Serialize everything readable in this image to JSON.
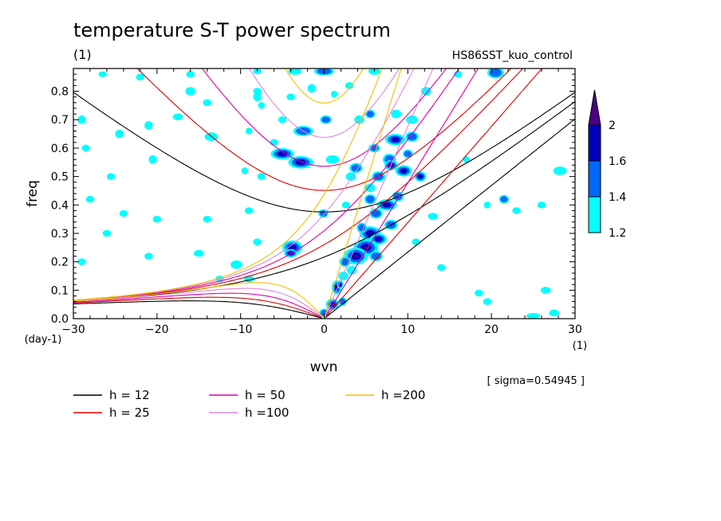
{
  "chart_data": {
    "type": "heatmap",
    "title": "temperature S-T power spectrum",
    "subtitle_left": "(1)",
    "subtitle_right": "HS86SST_kuo_control",
    "xlabel": "wvn",
    "ylabel": "freq",
    "x_unit": "(1)",
    "y_unit": "(day-1)",
    "sigma_note": "[ sigma=0.54945 ]",
    "xlim": [
      -30,
      30
    ],
    "ylim": [
      0,
      0.88
    ],
    "x_ticks": [
      -30,
      -20,
      -10,
      0,
      10,
      20,
      30
    ],
    "y_ticks": [
      0.0,
      0.1,
      0.2,
      0.3,
      0.4,
      0.5,
      0.6,
      0.7,
      0.8
    ],
    "colorbar": {
      "levels": [
        1.2,
        1.4,
        1.6,
        2
      ],
      "colors": [
        "#00ffff",
        "#0066ff",
        "#0000bb",
        "#4b0082"
      ]
    },
    "curves": [
      {
        "label": "h = 12",
        "h": 12,
        "color": "#000000"
      },
      {
        "label": "h = 25",
        "h": 25,
        "color": "#dd0000"
      },
      {
        "label": "h = 50",
        "h": 50,
        "color": "#dd00aa"
      },
      {
        "label": "h =100",
        "h": 100,
        "color": "#dd88dd"
      },
      {
        "label": "h =200",
        "h": 200,
        "color": "#f0c000"
      }
    ],
    "blobs": [
      {
        "x": 0,
        "y": 0.87,
        "w": 1.2,
        "h": 0.015,
        "level": 2
      },
      {
        "x": -3.5,
        "y": 0.87,
        "w": 0.8,
        "h": 0.012,
        "level": 1
      },
      {
        "x": 6,
        "y": 0.87,
        "w": 0.7,
        "h": 0.012,
        "level": 1
      },
      {
        "x": 20.5,
        "y": 0.865,
        "w": 1.0,
        "h": 0.02,
        "level": 2
      },
      {
        "x": -8,
        "y": 0.87,
        "w": 0.5,
        "h": 0.01,
        "level": 1
      },
      {
        "x": -22,
        "y": 0.85,
        "w": 0.5,
        "h": 0.012,
        "level": 1
      },
      {
        "x": -26.5,
        "y": 0.86,
        "w": 0.5,
        "h": 0.01,
        "level": 1
      },
      {
        "x": -16,
        "y": 0.86,
        "w": 0.5,
        "h": 0.012,
        "level": 1
      },
      {
        "x": 16,
        "y": 0.86,
        "w": 0.5,
        "h": 0.012,
        "level": 1
      },
      {
        "x": -8,
        "y": 0.78,
        "w": 0.5,
        "h": 0.015,
        "level": 1
      },
      {
        "x": -7.5,
        "y": 0.75,
        "w": 0.4,
        "h": 0.012,
        "level": 1
      },
      {
        "x": -16,
        "y": 0.8,
        "w": 0.6,
        "h": 0.015,
        "level": 1
      },
      {
        "x": -14,
        "y": 0.76,
        "w": 0.5,
        "h": 0.012,
        "level": 1
      },
      {
        "x": -8,
        "y": 0.8,
        "w": 0.5,
        "h": 0.012,
        "level": 1
      },
      {
        "x": -1.5,
        "y": 0.81,
        "w": 0.5,
        "h": 0.015,
        "level": 1
      },
      {
        "x": 1.2,
        "y": 0.79,
        "w": 0.4,
        "h": 0.012,
        "level": 1
      },
      {
        "x": 3,
        "y": 0.82,
        "w": 0.5,
        "h": 0.012,
        "level": 1
      },
      {
        "x": -4,
        "y": 0.78,
        "w": 0.5,
        "h": 0.012,
        "level": 1
      },
      {
        "x": -17.5,
        "y": 0.71,
        "w": 0.6,
        "h": 0.012,
        "level": 1
      },
      {
        "x": -29,
        "y": 0.7,
        "w": 0.5,
        "h": 0.015,
        "level": 1
      },
      {
        "x": -21,
        "y": 0.68,
        "w": 0.5,
        "h": 0.015,
        "level": 1
      },
      {
        "x": -5,
        "y": 0.7,
        "w": 0.5,
        "h": 0.012,
        "level": 1
      },
      {
        "x": -2.5,
        "y": 0.66,
        "w": 1.2,
        "h": 0.018,
        "level": 2
      },
      {
        "x": 0.2,
        "y": 0.7,
        "w": 0.7,
        "h": 0.015,
        "level": 2
      },
      {
        "x": 5.5,
        "y": 0.72,
        "w": 0.6,
        "h": 0.015,
        "level": 2
      },
      {
        "x": 8.6,
        "y": 0.72,
        "w": 0.6,
        "h": 0.015,
        "level": 1
      },
      {
        "x": 10.5,
        "y": 0.7,
        "w": 0.7,
        "h": 0.015,
        "level": 1
      },
      {
        "x": 4.2,
        "y": 0.7,
        "w": 0.6,
        "h": 0.015,
        "level": 1
      },
      {
        "x": 12.2,
        "y": 0.8,
        "w": 0.6,
        "h": 0.015,
        "level": 1
      },
      {
        "x": -24.5,
        "y": 0.65,
        "w": 0.5,
        "h": 0.015,
        "level": 1
      },
      {
        "x": -13.5,
        "y": 0.64,
        "w": 0.8,
        "h": 0.015,
        "level": 1
      },
      {
        "x": -9,
        "y": 0.66,
        "w": 0.4,
        "h": 0.012,
        "level": 1
      },
      {
        "x": -6,
        "y": 0.62,
        "w": 0.5,
        "h": 0.012,
        "level": 1
      },
      {
        "x": -5,
        "y": 0.58,
        "w": 1.4,
        "h": 0.02,
        "level": 3
      },
      {
        "x": -2.8,
        "y": 0.55,
        "w": 1.5,
        "h": 0.022,
        "level": 3
      },
      {
        "x": 1,
        "y": 0.56,
        "w": 0.8,
        "h": 0.015,
        "level": 1
      },
      {
        "x": -20.5,
        "y": 0.56,
        "w": 0.5,
        "h": 0.015,
        "level": 1
      },
      {
        "x": -28.5,
        "y": 0.6,
        "w": 0.5,
        "h": 0.012,
        "level": 1
      },
      {
        "x": 6,
        "y": 0.6,
        "w": 0.7,
        "h": 0.015,
        "level": 2
      },
      {
        "x": 8.5,
        "y": 0.63,
        "w": 1.2,
        "h": 0.02,
        "level": 3
      },
      {
        "x": 10.5,
        "y": 0.64,
        "w": 0.8,
        "h": 0.018,
        "level": 2
      },
      {
        "x": 7.8,
        "y": 0.56,
        "w": 0.8,
        "h": 0.02,
        "level": 2
      },
      {
        "x": 9.5,
        "y": 0.52,
        "w": 1.0,
        "h": 0.02,
        "level": 3
      },
      {
        "x": 8.0,
        "y": 0.54,
        "w": 0.8,
        "h": 0.018,
        "level": 3
      },
      {
        "x": 6.5,
        "y": 0.5,
        "w": 0.8,
        "h": 0.018,
        "level": 2
      },
      {
        "x": 3.8,
        "y": 0.53,
        "w": 0.8,
        "h": 0.018,
        "level": 2
      },
      {
        "x": 3.2,
        "y": 0.5,
        "w": 0.6,
        "h": 0.015,
        "level": 1
      },
      {
        "x": 11.5,
        "y": 0.5,
        "w": 0.7,
        "h": 0.018,
        "level": 3
      },
      {
        "x": -25.5,
        "y": 0.5,
        "w": 0.5,
        "h": 0.012,
        "level": 1
      },
      {
        "x": -9.5,
        "y": 0.52,
        "w": 0.4,
        "h": 0.012,
        "level": 1
      },
      {
        "x": -7.5,
        "y": 0.5,
        "w": 0.5,
        "h": 0.012,
        "level": 1
      },
      {
        "x": 5.5,
        "y": 0.46,
        "w": 0.6,
        "h": 0.015,
        "level": 1
      },
      {
        "x": 5.5,
        "y": 0.42,
        "w": 0.7,
        "h": 0.018,
        "level": 2
      },
      {
        "x": 7.5,
        "y": 0.4,
        "w": 1.2,
        "h": 0.02,
        "level": 3
      },
      {
        "x": 8.8,
        "y": 0.43,
        "w": 0.7,
        "h": 0.018,
        "level": 2
      },
      {
        "x": 6.2,
        "y": 0.37,
        "w": 0.8,
        "h": 0.018,
        "level": 2
      },
      {
        "x": -0.1,
        "y": 0.37,
        "w": 0.6,
        "h": 0.015,
        "level": 2
      },
      {
        "x": 2.6,
        "y": 0.4,
        "w": 0.5,
        "h": 0.012,
        "level": 1
      },
      {
        "x": -14,
        "y": 0.35,
        "w": 0.5,
        "h": 0.012,
        "level": 1
      },
      {
        "x": -20,
        "y": 0.35,
        "w": 0.5,
        "h": 0.012,
        "level": 1
      },
      {
        "x": -24,
        "y": 0.37,
        "w": 0.5,
        "h": 0.012,
        "level": 1
      },
      {
        "x": -28,
        "y": 0.42,
        "w": 0.5,
        "h": 0.012,
        "level": 1
      },
      {
        "x": -9,
        "y": 0.38,
        "w": 0.5,
        "h": 0.012,
        "level": 1
      },
      {
        "x": 13,
        "y": 0.36,
        "w": 0.6,
        "h": 0.012,
        "level": 1
      },
      {
        "x": 21.5,
        "y": 0.42,
        "w": 0.6,
        "h": 0.015,
        "level": 2
      },
      {
        "x": 19.5,
        "y": 0.4,
        "w": 0.4,
        "h": 0.012,
        "level": 1
      },
      {
        "x": 23,
        "y": 0.38,
        "w": 0.5,
        "h": 0.012,
        "level": 1
      },
      {
        "x": 26,
        "y": 0.4,
        "w": 0.5,
        "h": 0.012,
        "level": 1
      },
      {
        "x": 28.2,
        "y": 0.52,
        "w": 0.8,
        "h": 0.015,
        "level": 1
      },
      {
        "x": 8,
        "y": 0.33,
        "w": 0.8,
        "h": 0.018,
        "level": 2
      },
      {
        "x": 5.5,
        "y": 0.3,
        "w": 1.3,
        "h": 0.025,
        "level": 3
      },
      {
        "x": 4.5,
        "y": 0.32,
        "w": 0.6,
        "h": 0.018,
        "level": 2
      },
      {
        "x": 6.5,
        "y": 0.28,
        "w": 1.0,
        "h": 0.02,
        "level": 3
      },
      {
        "x": 5,
        "y": 0.25,
        "w": 1.5,
        "h": 0.03,
        "level": 4
      },
      {
        "x": 3.8,
        "y": 0.22,
        "w": 1.4,
        "h": 0.03,
        "level": 4
      },
      {
        "x": 6.2,
        "y": 0.22,
        "w": 0.8,
        "h": 0.018,
        "level": 2
      },
      {
        "x": 2.5,
        "y": 0.2,
        "w": 0.7,
        "h": 0.018,
        "level": 2
      },
      {
        "x": 2.3,
        "y": 0.15,
        "w": 0.6,
        "h": 0.015,
        "level": 1
      },
      {
        "x": 3.3,
        "y": 0.17,
        "w": 0.6,
        "h": 0.015,
        "level": 1
      },
      {
        "x": -3.8,
        "y": 0.25,
        "w": 1.2,
        "h": 0.025,
        "level": 3
      },
      {
        "x": -4,
        "y": 0.23,
        "w": 0.8,
        "h": 0.015,
        "level": 4
      },
      {
        "x": -10.5,
        "y": 0.19,
        "w": 0.7,
        "h": 0.015,
        "level": 1
      },
      {
        "x": -15,
        "y": 0.23,
        "w": 0.6,
        "h": 0.012,
        "level": 1
      },
      {
        "x": -21,
        "y": 0.22,
        "w": 0.5,
        "h": 0.012,
        "level": 1
      },
      {
        "x": -8,
        "y": 0.27,
        "w": 0.5,
        "h": 0.012,
        "level": 1
      },
      {
        "x": -26,
        "y": 0.3,
        "w": 0.5,
        "h": 0.012,
        "level": 1
      },
      {
        "x": -29,
        "y": 0.2,
        "w": 0.5,
        "h": 0.012,
        "level": 1
      },
      {
        "x": -9,
        "y": 0.14,
        "w": 0.6,
        "h": 0.012,
        "level": 1
      },
      {
        "x": -12.5,
        "y": 0.14,
        "w": 0.5,
        "h": 0.012,
        "level": 1
      },
      {
        "x": 1.5,
        "y": 0.11,
        "w": 0.6,
        "h": 0.025,
        "level": 3
      },
      {
        "x": 1.9,
        "y": 0.12,
        "w": 0.4,
        "h": 0.015,
        "level": 4
      },
      {
        "x": 1,
        "y": 0.05,
        "w": 0.8,
        "h": 0.02,
        "level": 4
      },
      {
        "x": 0,
        "y": 0.02,
        "w": 0.6,
        "h": 0.015,
        "level": 2
      },
      {
        "x": 2.2,
        "y": 0.06,
        "w": 0.5,
        "h": 0.015,
        "level": 2
      },
      {
        "x": 18.5,
        "y": 0.09,
        "w": 0.5,
        "h": 0.012,
        "level": 1
      },
      {
        "x": 26.5,
        "y": 0.1,
        "w": 0.6,
        "h": 0.012,
        "level": 1
      },
      {
        "x": 27.5,
        "y": 0.02,
        "w": 0.6,
        "h": 0.012,
        "level": 1
      },
      {
        "x": 25,
        "y": 0.01,
        "w": 0.8,
        "h": 0.01,
        "level": 1
      },
      {
        "x": 19.5,
        "y": 0.06,
        "w": 0.5,
        "h": 0.012,
        "level": 1
      },
      {
        "x": 14,
        "y": 0.18,
        "w": 0.5,
        "h": 0.012,
        "level": 1
      },
      {
        "x": 17,
        "y": 0.56,
        "w": 0.4,
        "h": 0.012,
        "level": 1
      },
      {
        "x": 11,
        "y": 0.27,
        "w": 0.5,
        "h": 0.012,
        "level": 1
      },
      {
        "x": 10,
        "y": 0.58,
        "w": 0.6,
        "h": 0.015,
        "level": 2
      }
    ]
  }
}
